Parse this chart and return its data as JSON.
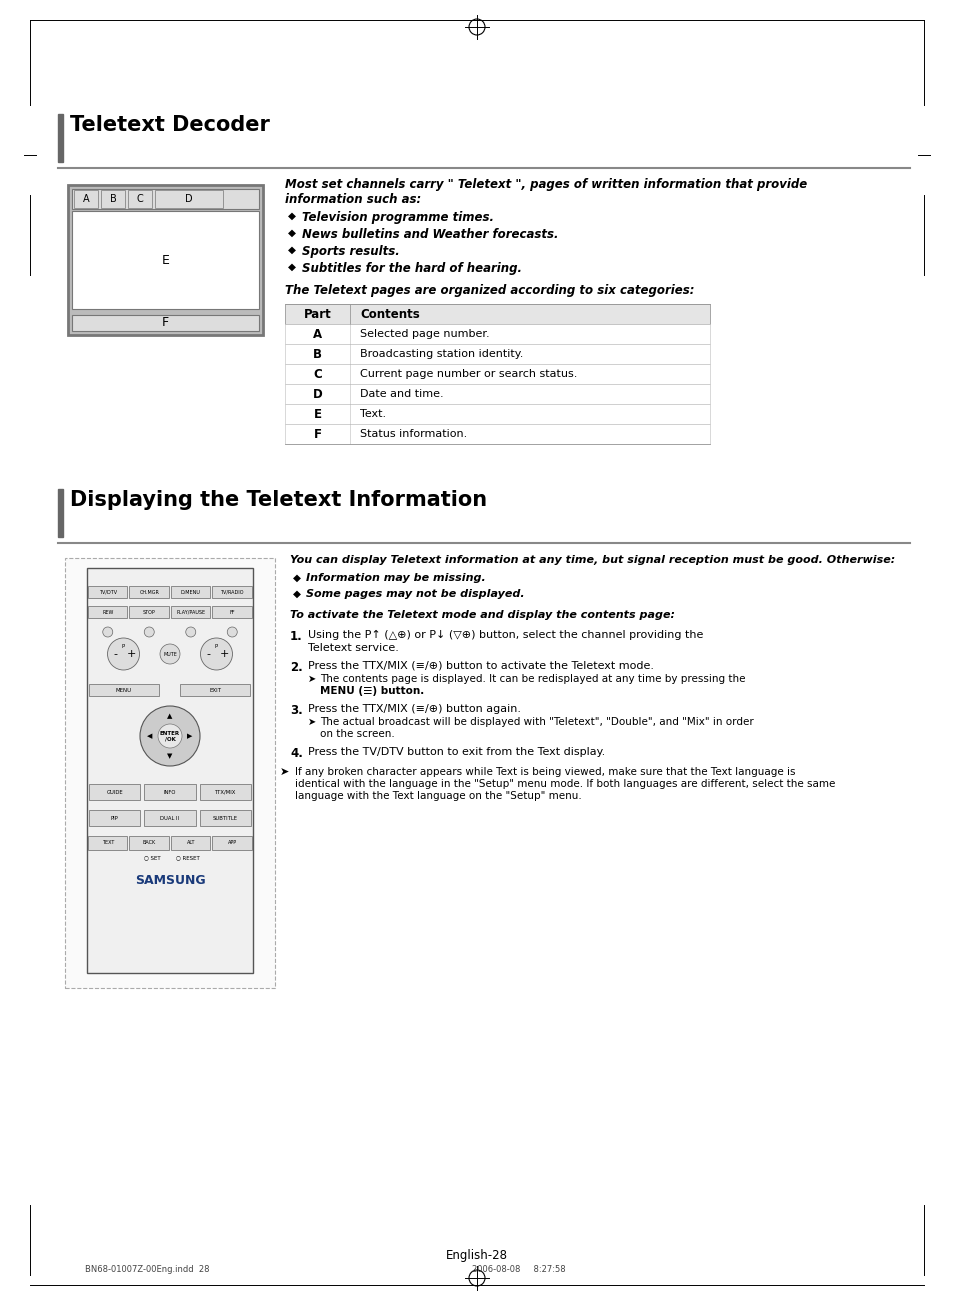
{
  "bg_color": "#ffffff",
  "title1": "Teletext Decoder",
  "title2": "Displaying the Teletext Information",
  "section1_text_intro_line1": "Most set channels carry \" Teletext \", pages of written information that provide",
  "section1_text_intro_line2": "information such as:",
  "section1_bullets": [
    "Television programme times.",
    "News bulletins and Weather forecasts.",
    "Sports results.",
    "Subtitles for the hard of hearing."
  ],
  "section1_table_header": [
    "Part",
    "Contents"
  ],
  "section1_table_rows": [
    [
      "A",
      "Selected page number."
    ],
    [
      "B",
      "Broadcasting station identity."
    ],
    [
      "C",
      "Current page number or search status."
    ],
    [
      "D",
      "Date and time."
    ],
    [
      "E",
      "Text."
    ],
    [
      "F",
      "Status information."
    ]
  ],
  "section1_table_note": "The Teletext pages are organized according to six categories:",
  "section2_intro": "You can display Teletext information at any time, but signal reception must be good. Otherwise:",
  "section2_bullets": [
    "Information may be missing.",
    "Some pages may not be displayed."
  ],
  "section2_activate": "To activate the Teletext mode and display the contents page:",
  "section2_steps": [
    [
      "1.",
      "Using the P",
      " or P",
      " button, select the channel providing the Teletext service."
    ],
    [
      "2.",
      "Press the TTX/MIX (",
      "/",
      ") button to activate the Teletext mode."
    ],
    [
      "3.",
      "Press the TTX/MIX (",
      "/",
      ") button again."
    ],
    [
      "4.",
      "Press the TV/DTV button to exit from the Text display."
    ]
  ],
  "step2_sub": "The contents page is displayed. It can be redisplayed at any time by pressing the MENU (☰) button.",
  "step3_sub": "The actual broadcast will be displayed with \"Teletext\", \"Double\", and \"Mix\" in order on the screen.",
  "section2_note": "If any broken character appears while Text is being viewed, make sure that the Text language is identical with the language in the \"Setup\" menu mode. If both languages are different, select the same language with the Text language on the \"Setup\" menu.",
  "footer_text": "English-28",
  "bottom_bar": "BN68-01007Z-00Eng.indd  28                                                                                                    2006-08-08     8:27:58"
}
